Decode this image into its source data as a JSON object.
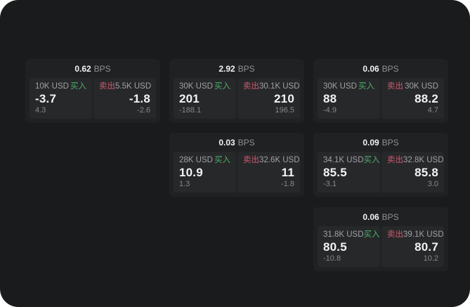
{
  "colors": {
    "window_bg": "#1a1b1c",
    "card_bg": "#1f2122",
    "panel_bg": "#272829",
    "buy_green": "#4cae70",
    "sell_red": "#cf5a72",
    "text_primary": "#f2f3f4",
    "text_secondary": "#9fa2a5",
    "text_tertiary": "#85888b",
    "text_unit": "#8f9295"
  },
  "cards": [
    {
      "header": {
        "value": "0.62",
        "unit": "BPS"
      },
      "buy": {
        "amount": "10K USD",
        "label": "买入",
        "price": "-3.7",
        "sub": "4.3"
      },
      "sell": {
        "label": "卖出",
        "amount": "5.5K USD",
        "price": "-1.8",
        "sub": "-2.6"
      }
    },
    {
      "header": {
        "value": "2.92",
        "unit": "BPS"
      },
      "buy": {
        "amount": "30K USD",
        "label": "买入",
        "price": "201",
        "sub": "-188.1"
      },
      "sell": {
        "label": "卖出",
        "amount": "30.1K USD",
        "price": "210",
        "sub": "196.5"
      }
    },
    {
      "header": {
        "value": "0.06",
        "unit": "BPS"
      },
      "buy": {
        "amount": "30K USD",
        "label": "买入",
        "price": "88",
        "sub": "-4.9"
      },
      "sell": {
        "label": "卖出",
        "amount": "30K USD",
        "price": "88.2",
        "sub": "4.7"
      }
    },
    {
      "header": {
        "value": "0.03",
        "unit": "BPS"
      },
      "buy": {
        "amount": "28K USD",
        "label": "买入",
        "price": "10.9",
        "sub": "1.3"
      },
      "sell": {
        "label": "卖出",
        "amount": "32.6K USD",
        "price": "11",
        "sub": "-1.8"
      }
    },
    {
      "header": {
        "value": "0.09",
        "unit": "BPS"
      },
      "buy": {
        "amount": "34.1K USD",
        "label": "买入",
        "price": "85.5",
        "sub": "-3.1"
      },
      "sell": {
        "label": "卖出",
        "amount": "32.8K USD",
        "price": "85.8",
        "sub": "3.0"
      }
    },
    {
      "header": {
        "value": "0.06",
        "unit": "BPS"
      },
      "buy": {
        "amount": "31.8K USD",
        "label": "买入",
        "price": "80.5",
        "sub": "-10.8"
      },
      "sell": {
        "label": "卖出",
        "amount": "39.1K USD",
        "price": "80.7",
        "sub": "10.2"
      }
    }
  ]
}
